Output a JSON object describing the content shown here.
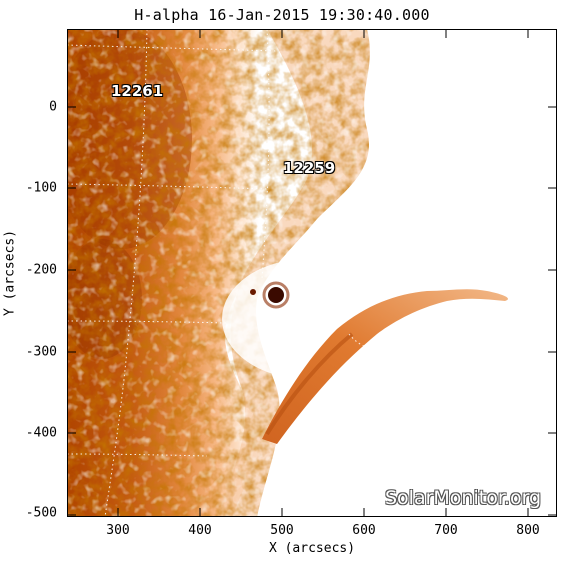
{
  "title": "H-alpha 16-Jan-2015 19:30:40.000",
  "x_axis": {
    "label": "X (arcsecs)",
    "ticks": [
      "300",
      "400",
      "500",
      "600",
      "700",
      "800"
    ]
  },
  "y_axis": {
    "label": "Y (arcsecs)",
    "ticks": [
      "0",
      "-100",
      "-200",
      "-300",
      "-400",
      "-500"
    ]
  },
  "active_regions": [
    {
      "id": "12261"
    },
    {
      "id": "12259"
    }
  ],
  "watermark": "SolarMonitor.org",
  "colors": {
    "disk_dark": "#a83c00",
    "disk_mid": "#d2691e",
    "disk_light": "#f5a96a",
    "filament": "#e07a30",
    "sunspot": "#3a0a00",
    "background": "#ffffff"
  }
}
